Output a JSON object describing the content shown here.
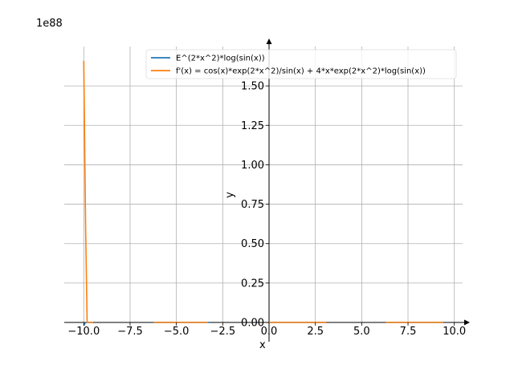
{
  "chart_data": {
    "type": "line",
    "xlabel": "x",
    "ylabel": "y",
    "y_scale_label": "1e88",
    "xlim": [
      -10.75,
      10.75
    ],
    "ylim": [
      0,
      1.75
    ],
    "x_ticks": [
      -10.0,
      -7.5,
      -5.0,
      -2.5,
      0.0,
      2.5,
      5.0,
      7.5,
      10.0
    ],
    "x_tick_labels": [
      "−10.0",
      "−7.5",
      "−5.0",
      "−2.5",
      "0.0",
      "2.5",
      "5.0",
      "7.5",
      "10.0"
    ],
    "y_ticks": [
      0.0,
      0.25,
      0.5,
      0.75,
      1.0,
      1.25,
      1.5
    ],
    "y_tick_labels": [
      "0.00",
      "0.25",
      "0.50",
      "0.75",
      "1.00",
      "1.25",
      "1.50"
    ],
    "grid": true,
    "legend_position": "top-right",
    "series": [
      {
        "name": "E^(2*x^2)*log(sin(x))",
        "color": "#1f77b4",
        "segments": [
          [
            [
              -10.0,
              -0.02
            ],
            [
              -9.9,
              0.0
            ],
            [
              -9.5,
              0.0
            ]
          ],
          [
            [
              -6.28,
              0.0
            ],
            [
              -3.2,
              0.0
            ]
          ],
          [
            [
              0.0,
              0.0
            ],
            [
              3.1,
              0.0
            ]
          ],
          [
            [
              6.3,
              0.0
            ],
            [
              9.4,
              0.0
            ]
          ]
        ]
      },
      {
        "name": "f'(x) = cos(x)*exp(2*x^2)/sin(x) + 4*x*exp(2*x^2)*log(sin(x))",
        "color": "#ff7f0e",
        "segments": [
          [
            [
              -10.0,
              1.66
            ],
            [
              -9.9,
              0.6
            ],
            [
              -9.82,
              0.0
            ],
            [
              -9.5,
              0.0
            ]
          ],
          [
            [
              -6.2,
              0.0
            ],
            [
              -3.3,
              0.0
            ]
          ],
          [
            [
              0.0,
              0.0
            ],
            [
              3.1,
              0.0
            ]
          ],
          [
            [
              6.3,
              0.0
            ],
            [
              9.4,
              0.0
            ]
          ]
        ]
      }
    ]
  }
}
